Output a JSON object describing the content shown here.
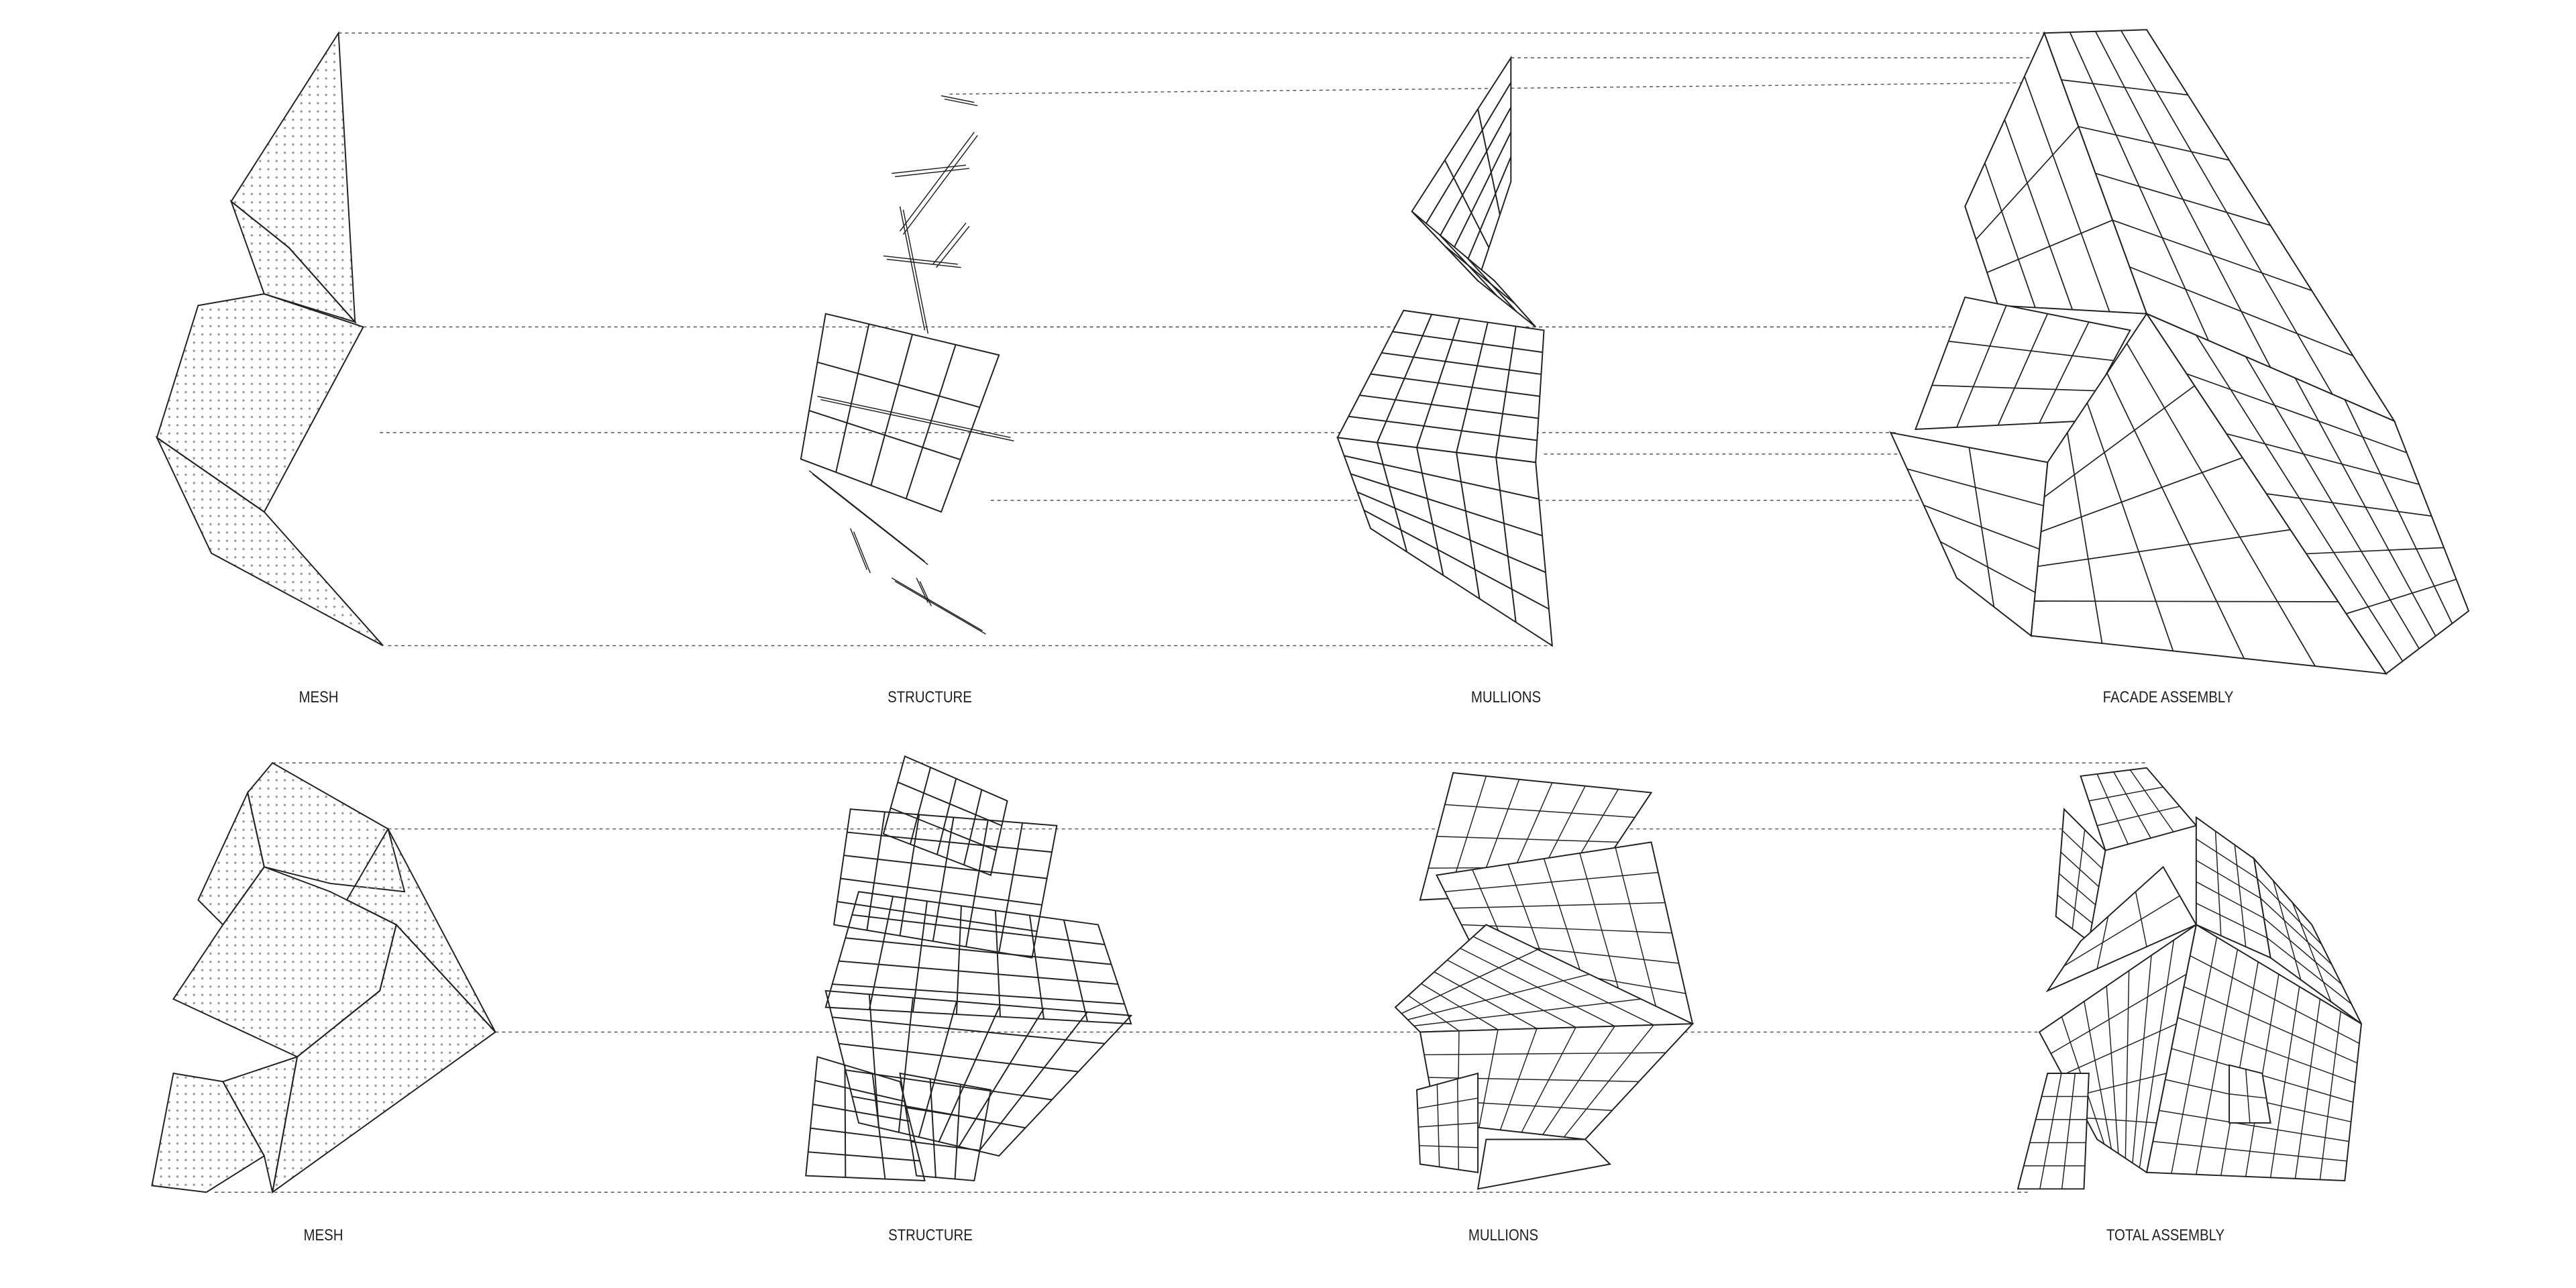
{
  "top_row": {
    "labels": [
      "MESH",
      "STRUCTURE",
      "MULLIONS",
      "FACADE ASSEMBLY"
    ]
  },
  "bottom_row": {
    "labels": [
      "MESH",
      "STRUCTURE",
      "MULLIONS",
      "TOTAL ASSEMBLY"
    ]
  },
  "colors": {
    "line": "#222222",
    "guide": "#555555",
    "mesh_dots": "#999999",
    "background": "#ffffff"
  }
}
